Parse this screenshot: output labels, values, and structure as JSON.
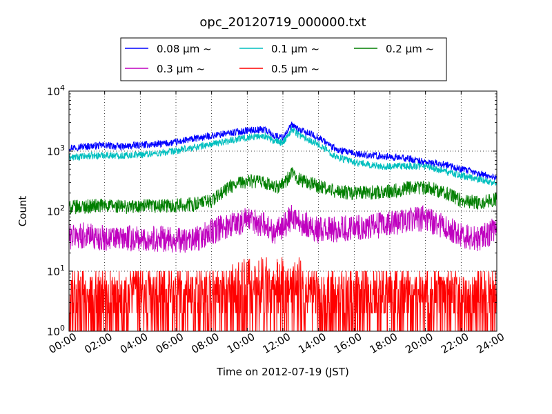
{
  "chart_data": {
    "type": "line",
    "title": "opc_20120719_000000.txt",
    "xlabel": "Time on 2012-07-19 (JST)",
    "ylabel": "Count",
    "y_scale": "log",
    "ylim": [
      1,
      10000
    ],
    "xlim_hours": [
      0,
      24
    ],
    "x_ticks": [
      "00:00",
      "02:00",
      "04:00",
      "06:00",
      "08:00",
      "10:00",
      "12:00",
      "14:00",
      "16:00",
      "18:00",
      "20:00",
      "22:00",
      "24:00"
    ],
    "y_ticks": [
      {
        "value": 1,
        "base": "10",
        "exp": "0"
      },
      {
        "value": 10,
        "base": "10",
        "exp": "1"
      },
      {
        "value": 100,
        "base": "10",
        "exp": "2"
      },
      {
        "value": 1000,
        "base": "10",
        "exp": "3"
      },
      {
        "value": 10000,
        "base": "10",
        "exp": "4"
      }
    ],
    "grid": true,
    "legend_placement": "top-center",
    "series": [
      {
        "name": "0.08 μm ~",
        "color": "#0000ff",
        "points": [
          [
            0,
            1150
          ],
          [
            1,
            1200
          ],
          [
            2,
            1250
          ],
          [
            3,
            1180
          ],
          [
            4,
            1260
          ],
          [
            5,
            1300
          ],
          [
            6,
            1400
          ],
          [
            7,
            1600
          ],
          [
            8,
            1800
          ],
          [
            9,
            2000
          ],
          [
            10,
            2200
          ],
          [
            11,
            2300
          ],
          [
            11.5,
            1800
          ],
          [
            12,
            1700
          ],
          [
            12.5,
            2700
          ],
          [
            13,
            2200
          ],
          [
            14,
            1700
          ],
          [
            15,
            1050
          ],
          [
            16,
            900
          ],
          [
            17,
            850
          ],
          [
            18,
            800
          ],
          [
            19,
            750
          ],
          [
            20,
            650
          ],
          [
            21,
            600
          ],
          [
            22,
            500
          ],
          [
            23,
            420
          ],
          [
            24,
            360
          ]
        ]
      },
      {
        "name": "0.1 μm ~",
        "color": "#00bfbf",
        "points": [
          [
            0,
            780
          ],
          [
            1,
            820
          ],
          [
            2,
            860
          ],
          [
            3,
            840
          ],
          [
            4,
            880
          ],
          [
            5,
            920
          ],
          [
            6,
            1000
          ],
          [
            7,
            1150
          ],
          [
            8,
            1300
          ],
          [
            9,
            1500
          ],
          [
            10,
            1700
          ],
          [
            11,
            1800
          ],
          [
            11.5,
            1450
          ],
          [
            12,
            1400
          ],
          [
            12.5,
            2300
          ],
          [
            13,
            1800
          ],
          [
            14,
            1300
          ],
          [
            15,
            800
          ],
          [
            16,
            650
          ],
          [
            17,
            580
          ],
          [
            18,
            550
          ],
          [
            19,
            560
          ],
          [
            20,
            560
          ],
          [
            21,
            470
          ],
          [
            22,
            390
          ],
          [
            23,
            340
          ],
          [
            24,
            290
          ]
        ]
      },
      {
        "name": "0.2 μm ~",
        "color": "#007f00",
        "points": [
          [
            0,
            115
          ],
          [
            1,
            120
          ],
          [
            2,
            125
          ],
          [
            3,
            118
          ],
          [
            4,
            120
          ],
          [
            5,
            120
          ],
          [
            6,
            125
          ],
          [
            7,
            130
          ],
          [
            8,
            150
          ],
          [
            9,
            250
          ],
          [
            10,
            320
          ],
          [
            11,
            300
          ],
          [
            11.5,
            240
          ],
          [
            12,
            280
          ],
          [
            12.5,
            420
          ],
          [
            13,
            330
          ],
          [
            14,
            260
          ],
          [
            15,
            210
          ],
          [
            16,
            200
          ],
          [
            17,
            205
          ],
          [
            18,
            215
          ],
          [
            19,
            240
          ],
          [
            20,
            250
          ],
          [
            21,
            210
          ],
          [
            22,
            150
          ],
          [
            23,
            140
          ],
          [
            24,
            160
          ]
        ]
      },
      {
        "name": "0.3 μm ~",
        "color": "#bf00bf",
        "points": [
          [
            0,
            38
          ],
          [
            1,
            40
          ],
          [
            2,
            35
          ],
          [
            3,
            35
          ],
          [
            4,
            34
          ],
          [
            5,
            35
          ],
          [
            6,
            33
          ],
          [
            7,
            32
          ],
          [
            8,
            45
          ],
          [
            9,
            60
          ],
          [
            10,
            70
          ],
          [
            11,
            60
          ],
          [
            11.5,
            45
          ],
          [
            12,
            55
          ],
          [
            12.5,
            80
          ],
          [
            13,
            65
          ],
          [
            14,
            48
          ],
          [
            15,
            50
          ],
          [
            16,
            55
          ],
          [
            17,
            55
          ],
          [
            18,
            60
          ],
          [
            19,
            70
          ],
          [
            20,
            75
          ],
          [
            21,
            55
          ],
          [
            22,
            40
          ],
          [
            23,
            35
          ],
          [
            24,
            50
          ]
        ]
      },
      {
        "name": "0.5 μm ~",
        "color": "#ff0000",
        "points": [
          [
            0,
            4
          ],
          [
            2,
            4
          ],
          [
            4,
            4
          ],
          [
            6,
            4
          ],
          [
            8,
            5
          ],
          [
            10,
            7
          ],
          [
            12,
            5
          ],
          [
            14,
            4
          ],
          [
            16,
            4
          ],
          [
            18,
            4
          ],
          [
            20,
            4
          ],
          [
            22,
            4
          ],
          [
            24,
            4
          ]
        ]
      }
    ]
  }
}
